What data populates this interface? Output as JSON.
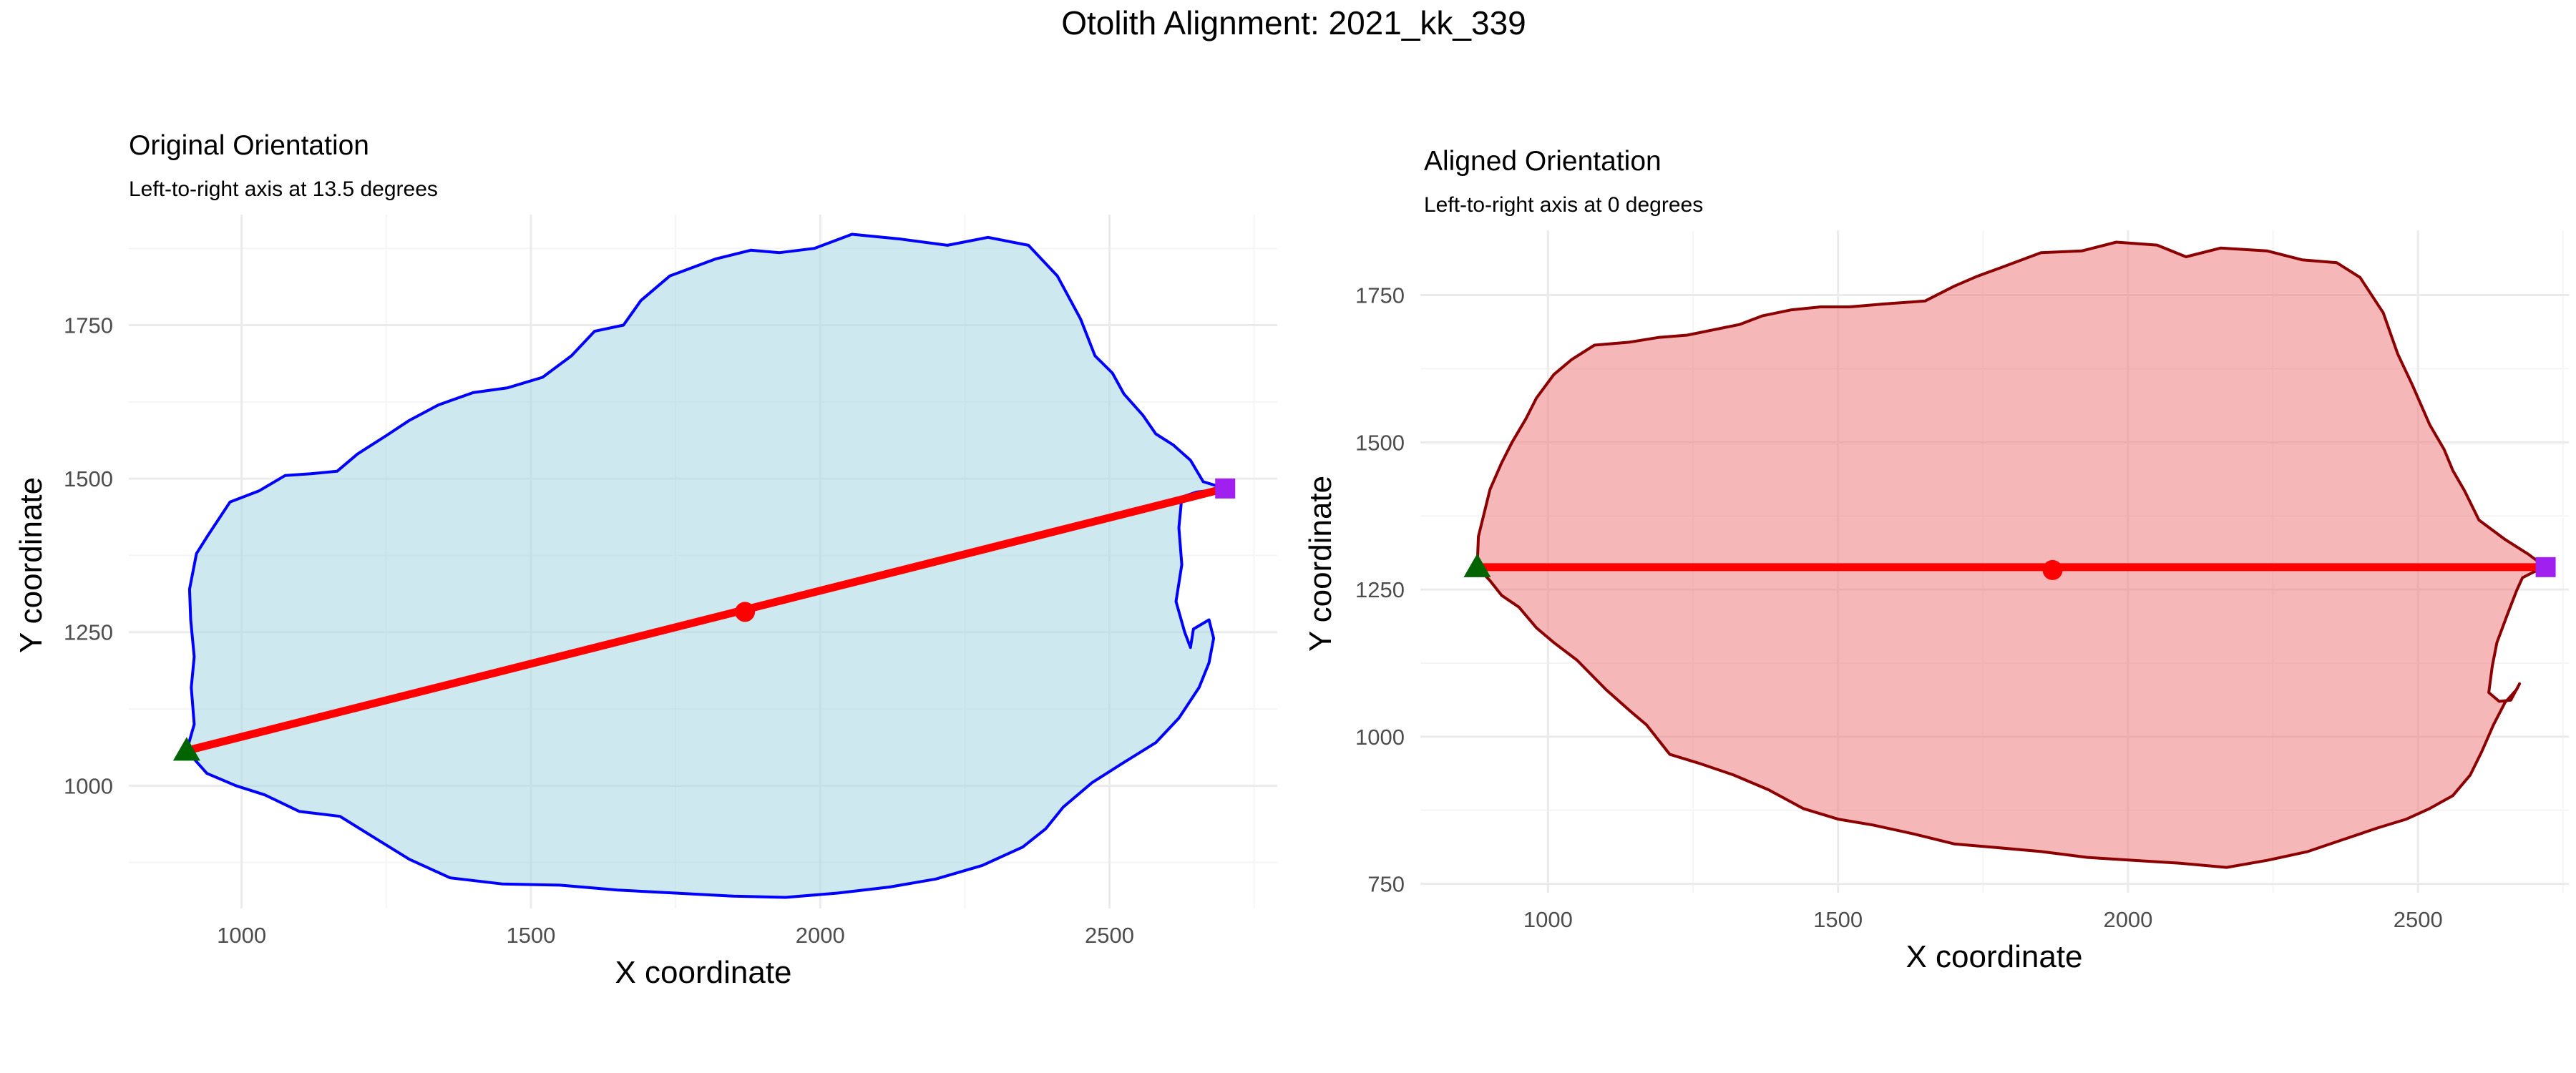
{
  "figure": {
    "title": "Otolith Alignment: 2021_kk_339"
  },
  "colors": {
    "axis_line": "#ff0000",
    "start_marker": "#006400",
    "end_marker": "#a020f0",
    "center_marker": "#ff0000"
  },
  "chart_data": [
    {
      "type": "area",
      "title": "Original Orientation",
      "subtitle": "Left-to-right axis at 13.5 degrees",
      "xlabel": "X coordinate",
      "ylabel": "Y coordinate",
      "xlim": [
        805,
        2790
      ],
      "ylim": [
        800,
        1930
      ],
      "xticks": [
        1000,
        1500,
        2000,
        2500
      ],
      "yticks": [
        1000,
        1250,
        1500,
        1750
      ],
      "grid": true,
      "outline_color": "#0000ff",
      "fill_color": "#add8e6",
      "fill_opacity": 0.6,
      "axis_segment": {
        "start": [
          905,
          1057
        ],
        "end": [
          2700,
          1484
        ],
        "center": [
          1870,
          1283
        ]
      },
      "outline": [
        [
          2700,
          1484
        ],
        [
          2662,
          1495
        ],
        [
          2640,
          1530
        ],
        [
          2610,
          1555
        ],
        [
          2580,
          1573
        ],
        [
          2558,
          1603
        ],
        [
          2525,
          1638
        ],
        [
          2505,
          1672
        ],
        [
          2475,
          1700
        ],
        [
          2450,
          1760
        ],
        [
          2410,
          1830
        ],
        [
          2360,
          1880
        ],
        [
          2290,
          1893
        ],
        [
          2220,
          1880
        ],
        [
          2140,
          1890
        ],
        [
          2055,
          1898
        ],
        [
          1990,
          1875
        ],
        [
          1930,
          1868
        ],
        [
          1880,
          1872
        ],
        [
          1820,
          1858
        ],
        [
          1740,
          1830
        ],
        [
          1690,
          1790
        ],
        [
          1660,
          1750
        ],
        [
          1610,
          1740
        ],
        [
          1570,
          1700
        ],
        [
          1520,
          1665
        ],
        [
          1460,
          1648
        ],
        [
          1400,
          1640
        ],
        [
          1340,
          1620
        ],
        [
          1290,
          1595
        ],
        [
          1250,
          1570
        ],
        [
          1200,
          1540
        ],
        [
          1165,
          1512
        ],
        [
          1120,
          1508
        ],
        [
          1075,
          1505
        ],
        [
          1030,
          1480
        ],
        [
          980,
          1462
        ],
        [
          942,
          1408
        ],
        [
          922,
          1378
        ],
        [
          910,
          1320
        ],
        [
          912,
          1270
        ],
        [
          918,
          1210
        ],
        [
          913,
          1160
        ],
        [
          918,
          1100
        ],
        [
          905,
          1057
        ],
        [
          940,
          1020
        ],
        [
          990,
          1000
        ],
        [
          1040,
          985
        ],
        [
          1100,
          958
        ],
        [
          1170,
          950
        ],
        [
          1230,
          915
        ],
        [
          1290,
          880
        ],
        [
          1360,
          850
        ],
        [
          1450,
          840
        ],
        [
          1550,
          838
        ],
        [
          1650,
          830
        ],
        [
          1750,
          825
        ],
        [
          1850,
          820
        ],
        [
          1940,
          818
        ],
        [
          2030,
          825
        ],
        [
          2120,
          835
        ],
        [
          2200,
          848
        ],
        [
          2280,
          870
        ],
        [
          2350,
          900
        ],
        [
          2390,
          930
        ],
        [
          2420,
          965
        ],
        [
          2470,
          1005
        ],
        [
          2520,
          1035
        ],
        [
          2580,
          1070
        ],
        [
          2620,
          1110
        ],
        [
          2655,
          1160
        ],
        [
          2672,
          1200
        ],
        [
          2680,
          1240
        ],
        [
          2672,
          1270
        ],
        [
          2645,
          1255
        ],
        [
          2640,
          1225
        ],
        [
          2630,
          1250
        ],
        [
          2615,
          1300
        ],
        [
          2625,
          1360
        ],
        [
          2620,
          1420
        ],
        [
          2625,
          1470
        ],
        [
          2650,
          1478
        ],
        [
          2700,
          1484
        ]
      ]
    },
    {
      "type": "area",
      "title": "Aligned Orientation",
      "subtitle": "Left-to-right axis at 0 degrees",
      "xlabel": "X coordinate",
      "ylabel": "Y coordinate",
      "xlim": [
        780,
        2760
      ],
      "ylim": [
        735,
        1860
      ],
      "xticks": [
        1000,
        1500,
        2000,
        2500
      ],
      "yticks": [
        750,
        1000,
        1250,
        1500,
        1750
      ],
      "grid": true,
      "outline_color": "#8b0000",
      "fill_color": "#ee7b80",
      "fill_opacity": 0.55,
      "axis_segment": {
        "start": [
          878,
          1288
        ],
        "end": [
          2720,
          1288
        ],
        "center": [
          1870,
          1283
        ]
      },
      "outline": [
        [
          2720,
          1288
        ],
        [
          2690,
          1310
        ],
        [
          2650,
          1335
        ],
        [
          2605,
          1368
        ],
        [
          2580,
          1418
        ],
        [
          2560,
          1452
        ],
        [
          2545,
          1488
        ],
        [
          2520,
          1530
        ],
        [
          2490,
          1598
        ],
        [
          2465,
          1650
        ],
        [
          2440,
          1720
        ],
        [
          2400,
          1780
        ],
        [
          2360,
          1805
        ],
        [
          2300,
          1810
        ],
        [
          2240,
          1825
        ],
        [
          2160,
          1830
        ],
        [
          2100,
          1815
        ],
        [
          2050,
          1835
        ],
        [
          1980,
          1840
        ],
        [
          1920,
          1825
        ],
        [
          1850,
          1822
        ],
        [
          1790,
          1800
        ],
        [
          1740,
          1782
        ],
        [
          1700,
          1765
        ],
        [
          1650,
          1740
        ],
        [
          1580,
          1735
        ],
        [
          1520,
          1730
        ],
        [
          1470,
          1730
        ],
        [
          1420,
          1725
        ],
        [
          1370,
          1715
        ],
        [
          1330,
          1700
        ],
        [
          1280,
          1690
        ],
        [
          1240,
          1682
        ],
        [
          1190,
          1678
        ],
        [
          1140,
          1670
        ],
        [
          1080,
          1665
        ],
        [
          1040,
          1640
        ],
        [
          1010,
          1615
        ],
        [
          980,
          1575
        ],
        [
          962,
          1540
        ],
        [
          938,
          1500
        ],
        [
          920,
          1465
        ],
        [
          900,
          1420
        ],
        [
          890,
          1380
        ],
        [
          880,
          1340
        ],
        [
          878,
          1288
        ],
        [
          900,
          1265
        ],
        [
          920,
          1240
        ],
        [
          950,
          1220
        ],
        [
          980,
          1185
        ],
        [
          1010,
          1160
        ],
        [
          1050,
          1130
        ],
        [
          1100,
          1080
        ],
        [
          1140,
          1045
        ],
        [
          1170,
          1020
        ],
        [
          1210,
          970
        ],
        [
          1260,
          955
        ],
        [
          1320,
          935
        ],
        [
          1380,
          910
        ],
        [
          1440,
          878
        ],
        [
          1500,
          860
        ],
        [
          1560,
          850
        ],
        [
          1630,
          835
        ],
        [
          1700,
          818
        ],
        [
          1770,
          812
        ],
        [
          1850,
          805
        ],
        [
          1930,
          795
        ],
        [
          2010,
          790
        ],
        [
          2090,
          785
        ],
        [
          2170,
          778
        ],
        [
          2240,
          790
        ],
        [
          2310,
          805
        ],
        [
          2370,
          825
        ],
        [
          2430,
          845
        ],
        [
          2480,
          860
        ],
        [
          2520,
          878
        ],
        [
          2560,
          900
        ],
        [
          2590,
          935
        ],
        [
          2610,
          975
        ],
        [
          2630,
          1020
        ],
        [
          2650,
          1058
        ],
        [
          2670,
          1080
        ],
        [
          2675,
          1090
        ],
        [
          2660,
          1062
        ],
        [
          2640,
          1060
        ],
        [
          2622,
          1075
        ],
        [
          2628,
          1120
        ],
        [
          2636,
          1160
        ],
        [
          2655,
          1210
        ],
        [
          2670,
          1248
        ],
        [
          2680,
          1270
        ],
        [
          2700,
          1280
        ],
        [
          2720,
          1288
        ]
      ]
    }
  ]
}
